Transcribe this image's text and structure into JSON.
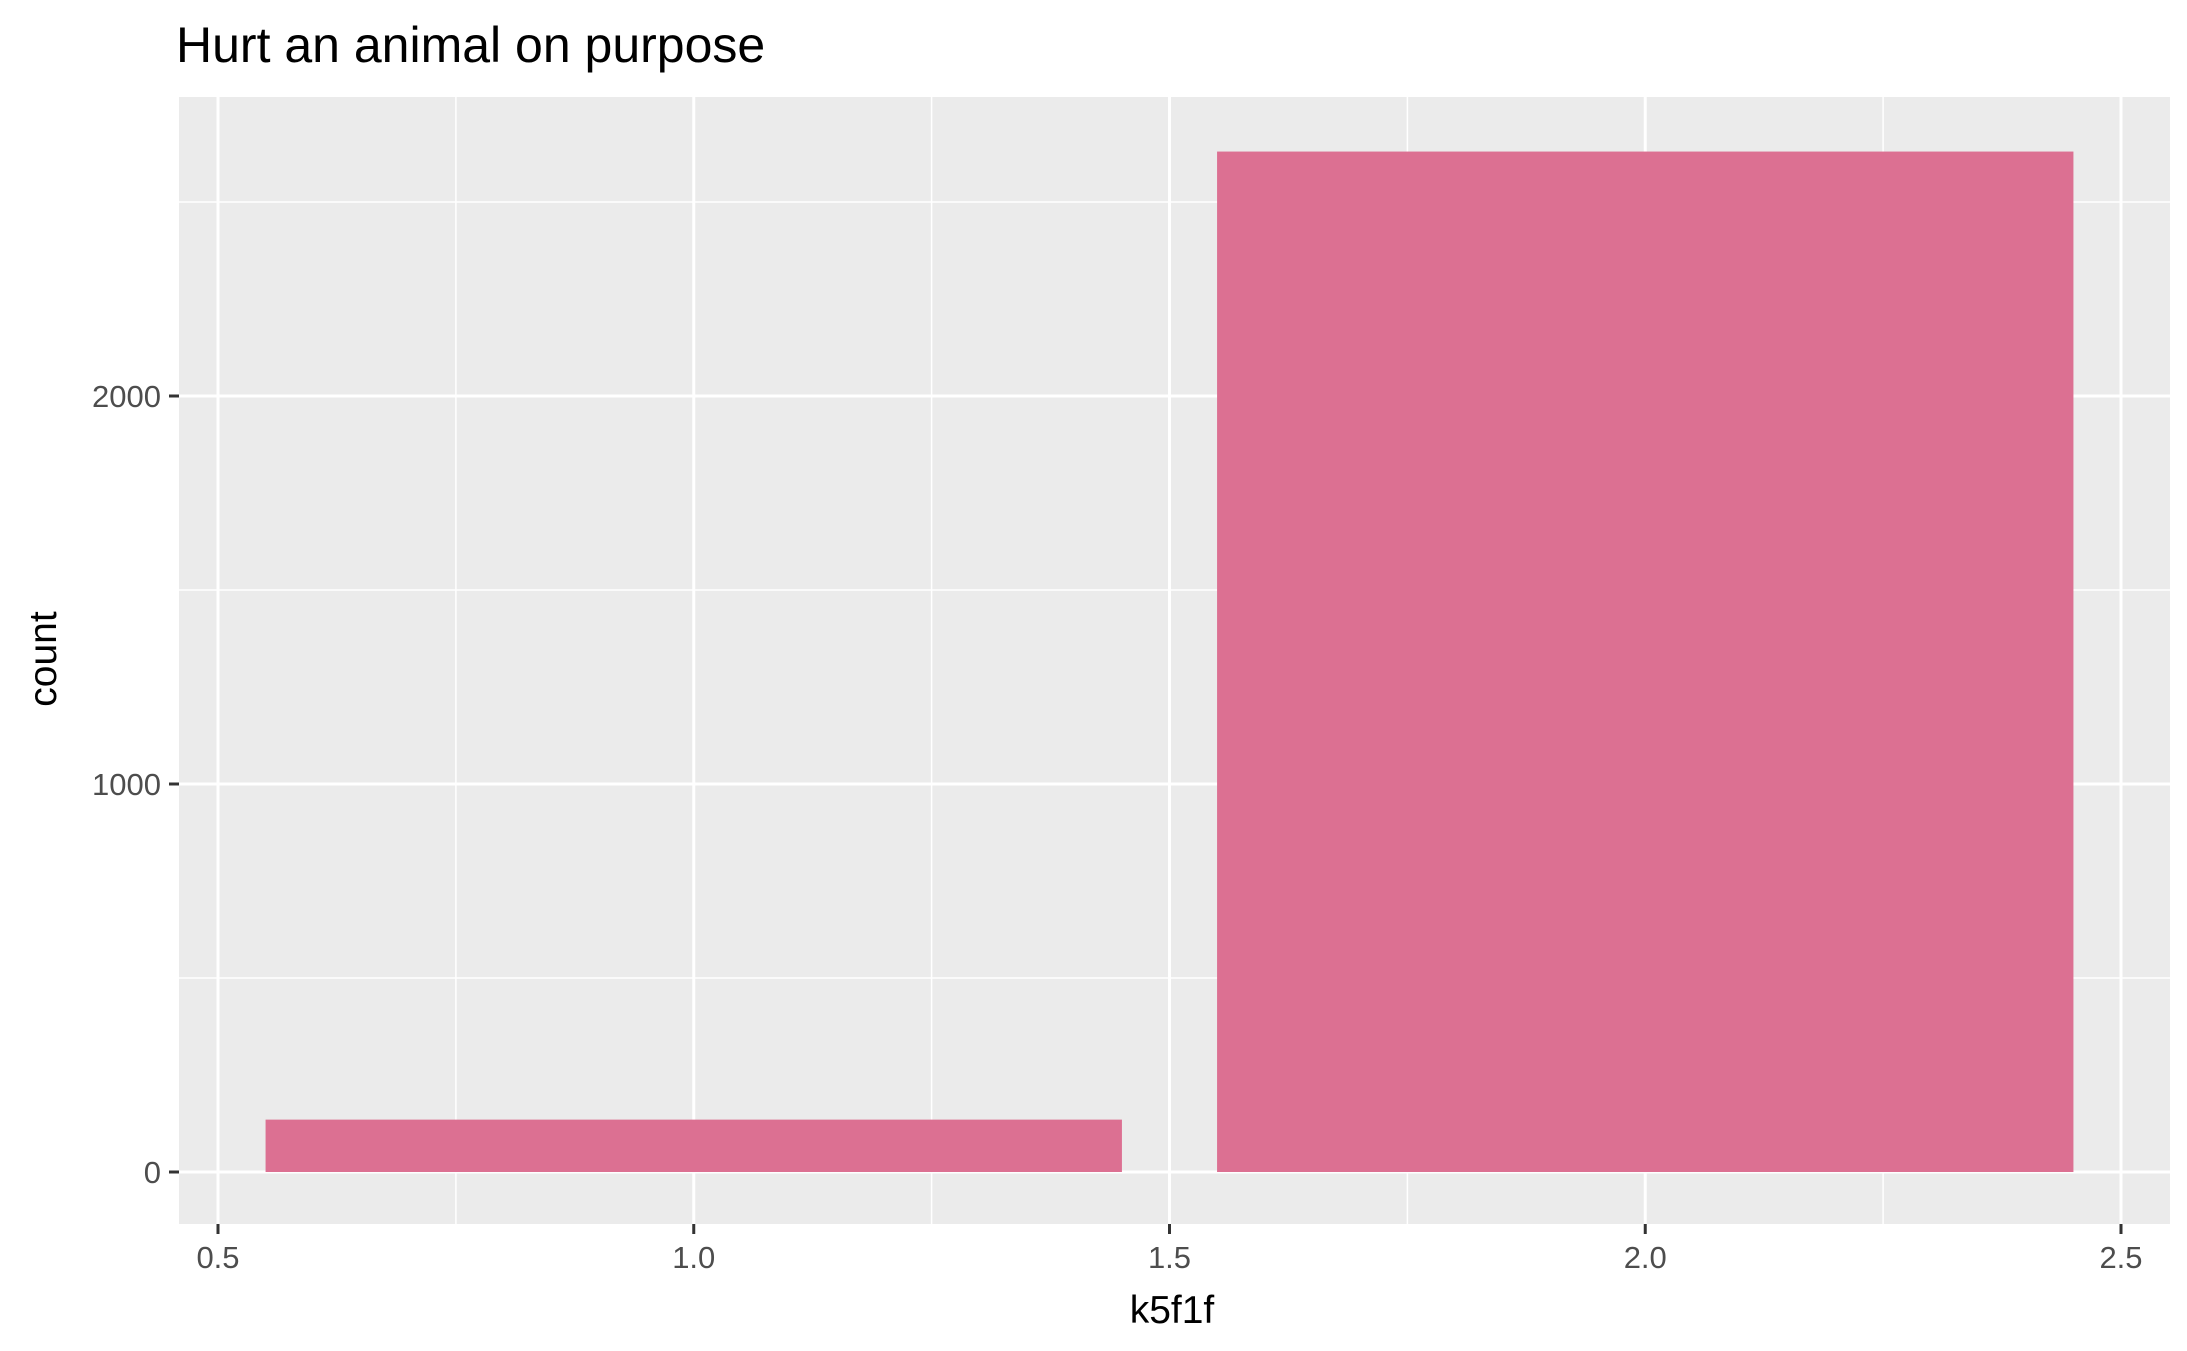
{
  "chart_data": {
    "type": "bar",
    "title": "Hurt an animal on purpose",
    "xlabel": "k5f1f",
    "ylabel": "count",
    "xlim": [
      0.5,
      2.5
    ],
    "ylim": [
      0,
      2700
    ],
    "x_ticks": [
      "0.5",
      "1.0",
      "1.5",
      "2.0",
      "2.5"
    ],
    "x_tick_values": [
      0.5,
      1.0,
      1.5,
      2.0,
      2.5
    ],
    "y_ticks": [
      "0",
      "1000",
      "2000"
    ],
    "y_tick_values": [
      0,
      1000,
      2000
    ],
    "bars": [
      {
        "x": 1,
        "width": 0.9,
        "value": 135
      },
      {
        "x": 2,
        "width": 0.9,
        "value": 2630
      }
    ],
    "bar_color": "#DC7092",
    "panel_color": "#EBEBEB",
    "grid": true,
    "legend": "none"
  }
}
